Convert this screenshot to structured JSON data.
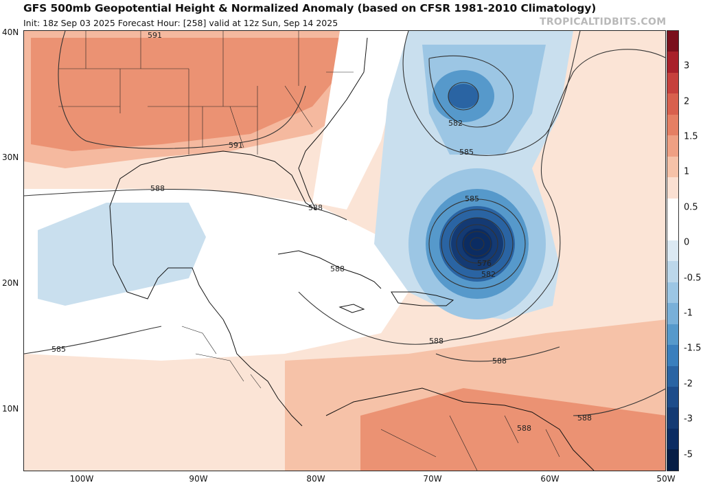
{
  "header": {
    "title": "GFS 500mb Geopotential Height & Normalized Anomaly (based on CFSR 1981-2010 Climatology)",
    "subtitle": "Init: 18z Sep 03 2025   Forecast Hour: [258]   valid at 12z Sun, Sep 14 2025",
    "brand": "TROPICALTIDBITS.COM"
  },
  "map": {
    "lat_labels": [
      "40N",
      "30N",
      "20N",
      "10N"
    ],
    "lon_labels": [
      "100W",
      "90W",
      "80W",
      "70W",
      "60W",
      "50W"
    ],
    "contour_labels": [
      "591",
      "582",
      "585",
      "591",
      "588",
      "588",
      "585",
      "588",
      "576",
      "582",
      "585",
      "588",
      "588",
      "588",
      "588"
    ],
    "colors": {
      "strong_negative": "#0b2c62",
      "moderate_negative": "#2f6fb0",
      "weak_negative": "#9cc6e4",
      "weak_positive": "#fbdcc8",
      "moderate_positive": "#f2a487",
      "strong_positive": "#e8795f"
    }
  },
  "colorbar": {
    "labels": [
      "3",
      "2",
      "1.5",
      "1",
      "0.5",
      "0",
      "-0.5",
      "-1",
      "-1.5",
      "-2",
      "-3",
      "-5"
    ],
    "colors": [
      "#7a0f1c",
      "#a8202a",
      "#c6403c",
      "#d8604d",
      "#e57f63",
      "#efa083",
      "#f6c2a8",
      "#fbe0d2",
      "#ffffff",
      "#ffffff",
      "#dbe9f3",
      "#bcd7ea",
      "#9cc6e4",
      "#79b0d9",
      "#5699cb",
      "#3a7fbd",
      "#2a64a3",
      "#1d4c8a",
      "#143a73",
      "#0b2c62",
      "#061d45"
    ]
  }
}
